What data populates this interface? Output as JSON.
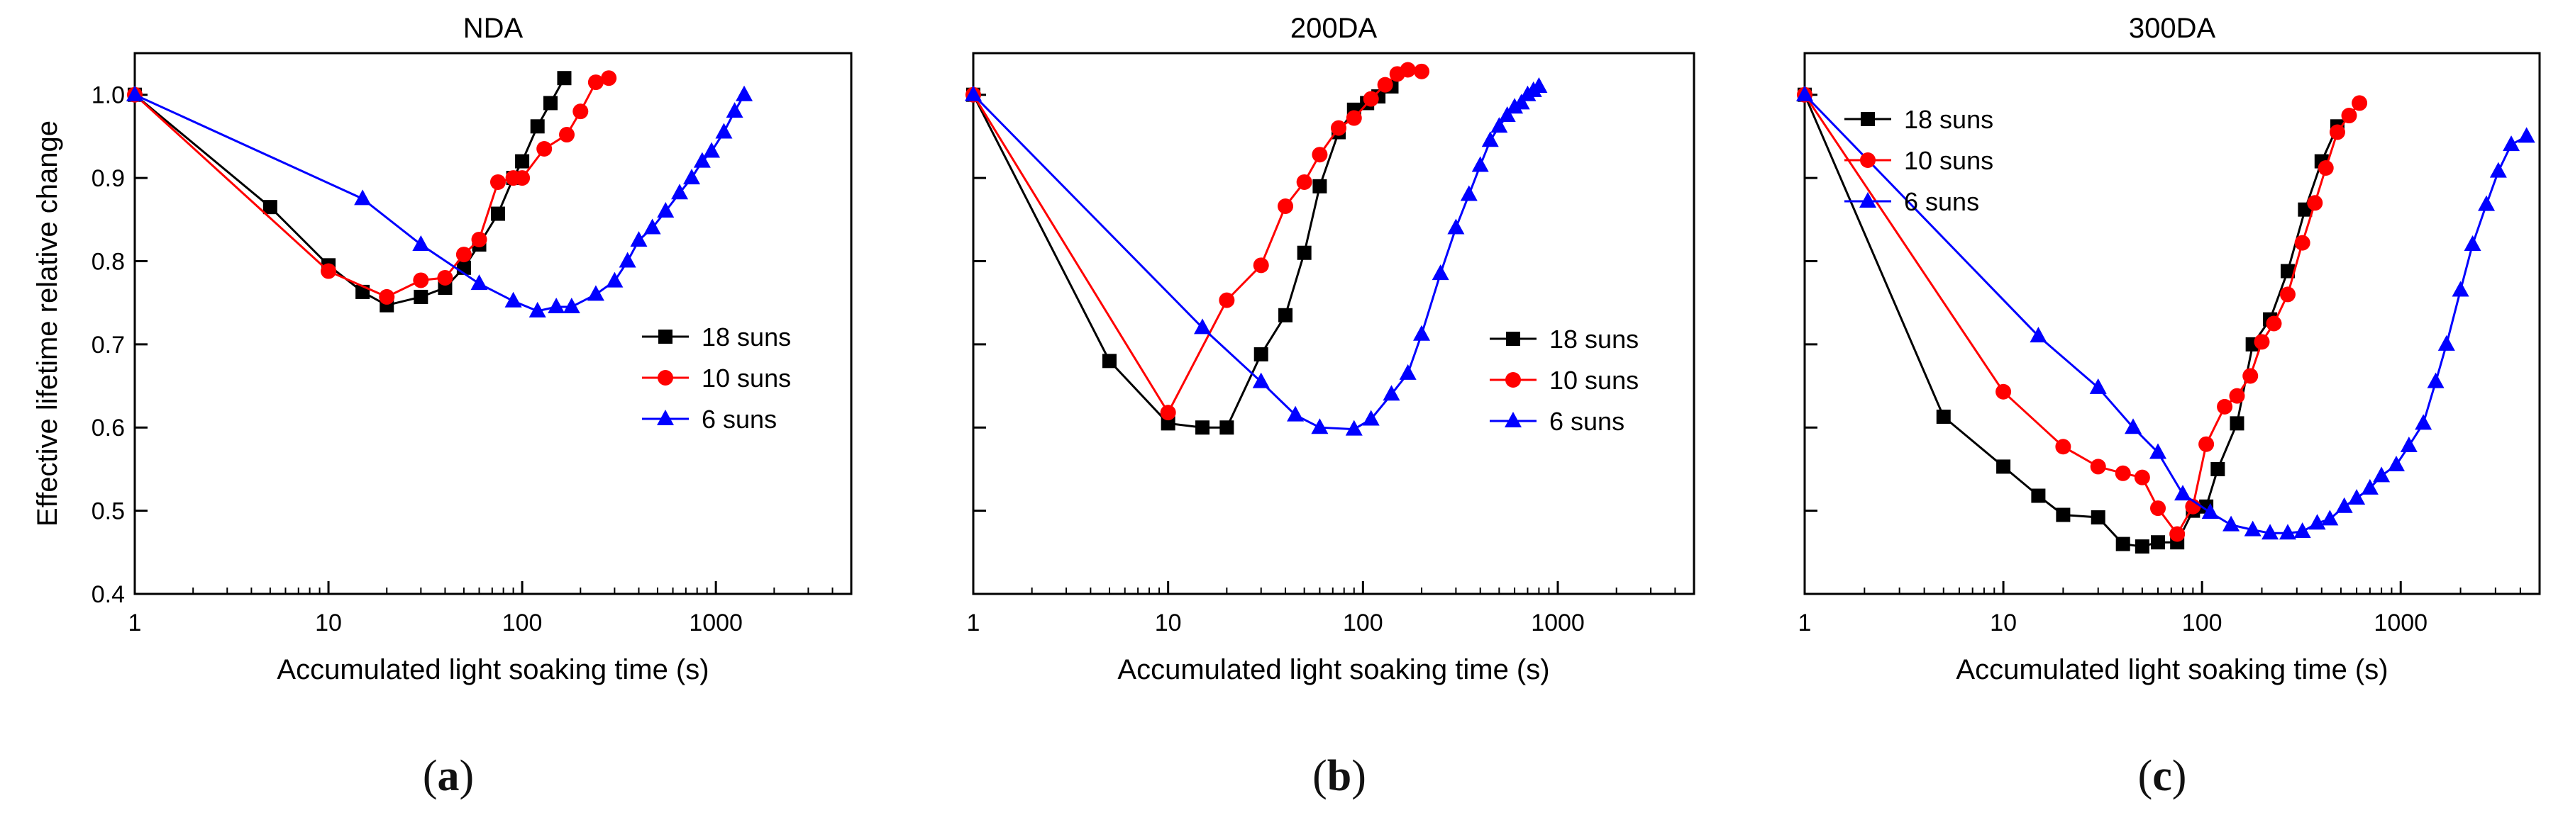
{
  "figure": {
    "panel_labels": [
      "(a)",
      "(b)",
      "(c)"
    ],
    "panel_letters": [
      "a",
      "b",
      "c"
    ]
  },
  "colors": {
    "18 suns": "#000000",
    "10 suns": "#ff0000",
    "6 suns": "#0000ff",
    "axis": "#000000"
  },
  "chart_data": [
    {
      "type": "line",
      "title": "NDA",
      "xlabel": "Accumulated light soaking time (s)",
      "ylabel": "Effective lifetime relative change",
      "xscale": "log",
      "xlim": [
        1,
        5000
      ],
      "ylim": [
        0.4,
        1.05
      ],
      "xticks": [
        1,
        10,
        100,
        1000
      ],
      "xtick_labels": [
        "1",
        "10",
        "100",
        "1000"
      ],
      "yticks": [
        0.4,
        0.5,
        0.6,
        0.7,
        0.8,
        0.9,
        1.0
      ],
      "ytick_labels": [
        "0.4",
        "0.5",
        "0.6",
        "0.7",
        "0.8",
        "0.9",
        "1.0"
      ],
      "legend_position": "right-middle",
      "series": [
        {
          "name": "18 suns",
          "marker": "square",
          "x": [
            1,
            5,
            10,
            15,
            20,
            30,
            40,
            50,
            60,
            75,
            90,
            100,
            120,
            140,
            165
          ],
          "y": [
            1.0,
            0.865,
            0.795,
            0.763,
            0.747,
            0.757,
            0.768,
            0.792,
            0.82,
            0.857,
            0.9,
            0.92,
            0.962,
            0.99,
            1.02
          ]
        },
        {
          "name": "10 suns",
          "marker": "circle",
          "x": [
            1,
            10,
            20,
            30,
            40,
            50,
            60,
            75,
            90,
            100,
            130,
            170,
            200,
            240,
            280
          ],
          "y": [
            1.0,
            0.788,
            0.757,
            0.777,
            0.78,
            0.808,
            0.826,
            0.895,
            0.9,
            0.9,
            0.935,
            0.952,
            0.98,
            1.015,
            1.02
          ]
        },
        {
          "name": "6 suns",
          "marker": "triangle",
          "x": [
            1,
            15,
            30,
            60,
            90,
            120,
            150,
            180,
            240,
            300,
            350,
            400,
            470,
            550,
            650,
            750,
            850,
            950,
            1100,
            1250,
            1400
          ],
          "y": [
            1.0,
            0.875,
            0.82,
            0.773,
            0.752,
            0.74,
            0.745,
            0.745,
            0.76,
            0.776,
            0.8,
            0.825,
            0.84,
            0.86,
            0.882,
            0.9,
            0.92,
            0.932,
            0.955,
            0.98,
            1.0
          ]
        }
      ]
    },
    {
      "type": "line",
      "title": "200DA",
      "xlabel": "Accumulated light soaking time (s)",
      "ylabel": "",
      "xscale": "log",
      "xlim": [
        1,
        5000
      ],
      "ylim": [
        0.4,
        1.05
      ],
      "xticks": [
        1,
        10,
        100,
        1000
      ],
      "xtick_labels": [
        "1",
        "10",
        "100",
        "1000"
      ],
      "yticks": [
        0.4,
        0.5,
        0.6,
        0.7,
        0.8,
        0.9,
        1.0
      ],
      "ytick_labels": [],
      "legend_position": "right-middle",
      "series": [
        {
          "name": "18 suns",
          "marker": "square",
          "x": [
            1,
            5,
            10,
            15,
            20,
            30,
            40,
            50,
            60,
            75,
            90,
            105,
            120,
            140
          ],
          "y": [
            1.0,
            0.68,
            0.605,
            0.6,
            0.6,
            0.688,
            0.735,
            0.81,
            0.89,
            0.955,
            0.982,
            0.99,
            0.998,
            1.01
          ]
        },
        {
          "name": "10 suns",
          "marker": "circle",
          "x": [
            1,
            10,
            20,
            30,
            40,
            50,
            60,
            75,
            90,
            110,
            130,
            150,
            170,
            200
          ],
          "y": [
            1.0,
            0.618,
            0.753,
            0.795,
            0.866,
            0.895,
            0.928,
            0.96,
            0.972,
            0.995,
            1.012,
            1.025,
            1.03,
            1.028
          ]
        },
        {
          "name": "6 suns",
          "marker": "triangle",
          "x": [
            1,
            15,
            30,
            45,
            60,
            90,
            110,
            140,
            170,
            200,
            250,
            300,
            350,
            400,
            450,
            500,
            550,
            600,
            650,
            700,
            750,
            800
          ],
          "y": [
            1.0,
            0.72,
            0.655,
            0.615,
            0.6,
            0.598,
            0.61,
            0.64,
            0.665,
            0.712,
            0.785,
            0.84,
            0.88,
            0.915,
            0.945,
            0.962,
            0.975,
            0.985,
            0.99,
            1.0,
            1.005,
            1.01
          ]
        }
      ]
    },
    {
      "type": "line",
      "title": "300DA",
      "xlabel": "Accumulated light soaking time (s)",
      "ylabel": "",
      "xscale": "log",
      "xlim": [
        1,
        5000
      ],
      "ylim": [
        0.4,
        1.05
      ],
      "xticks": [
        1,
        10,
        100,
        1000
      ],
      "xtick_labels": [
        "1",
        "10",
        "100",
        "1000"
      ],
      "yticks": [
        0.4,
        0.5,
        0.6,
        0.7,
        0.8,
        0.9,
        1.0
      ],
      "ytick_labels": [],
      "legend_position": "top-left",
      "series": [
        {
          "name": "18 suns",
          "marker": "square",
          "x": [
            1,
            5,
            10,
            15,
            20,
            30,
            40,
            50,
            60,
            75,
            90,
            105,
            120,
            150,
            180,
            220,
            270,
            330,
            400,
            480
          ],
          "y": [
            1.0,
            0.613,
            0.553,
            0.518,
            0.495,
            0.492,
            0.46,
            0.457,
            0.462,
            0.462,
            0.5,
            0.505,
            0.55,
            0.605,
            0.7,
            0.73,
            0.788,
            0.862,
            0.92,
            0.962
          ]
        },
        {
          "name": "10 suns",
          "marker": "circle",
          "x": [
            1,
            10,
            20,
            30,
            40,
            50,
            60,
            75,
            90,
            105,
            130,
            150,
            175,
            200,
            230,
            270,
            320,
            370,
            420,
            480,
            550,
            620
          ],
          "y": [
            1.0,
            0.643,
            0.577,
            0.553,
            0.545,
            0.54,
            0.503,
            0.472,
            0.505,
            0.58,
            0.625,
            0.638,
            0.662,
            0.703,
            0.725,
            0.76,
            0.822,
            0.87,
            0.912,
            0.955,
            0.975,
            0.99
          ]
        },
        {
          "name": "6 suns",
          "marker": "triangle",
          "x": [
            1,
            15,
            30,
            45,
            60,
            80,
            110,
            140,
            180,
            220,
            270,
            320,
            380,
            440,
            520,
            600,
            700,
            800,
            950,
            1100,
            1300,
            1500,
            1700,
            2000,
            2300,
            2700,
            3100,
            3600,
            4300
          ],
          "y": [
            1.0,
            0.71,
            0.648,
            0.6,
            0.57,
            0.52,
            0.498,
            0.483,
            0.477,
            0.473,
            0.473,
            0.475,
            0.485,
            0.49,
            0.505,
            0.515,
            0.527,
            0.542,
            0.555,
            0.578,
            0.605,
            0.655,
            0.7,
            0.765,
            0.82,
            0.868,
            0.908,
            0.94,
            0.95
          ]
        }
      ]
    }
  ]
}
